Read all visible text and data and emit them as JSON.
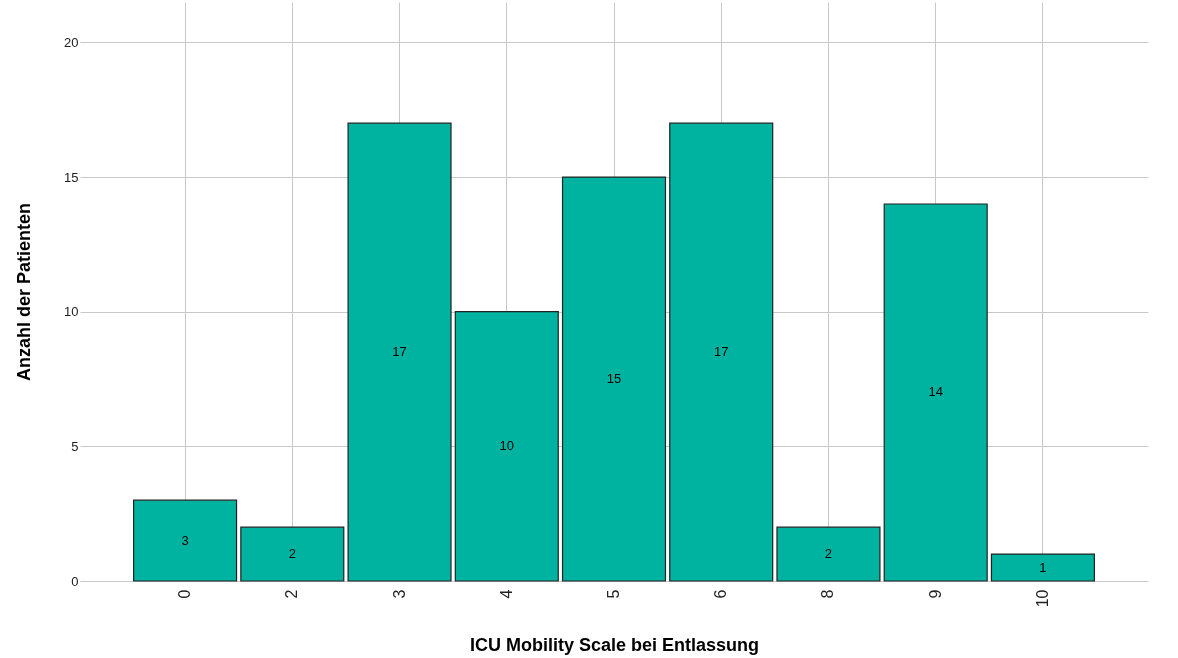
{
  "chart_data": {
    "type": "bar",
    "xlabel": "ICU Mobility Scale bei Entlassung",
    "ylabel": "Anzahl der Patienten",
    "categories": [
      "0",
      "2",
      "3",
      "4",
      "5",
      "6",
      "8",
      "9",
      "10"
    ],
    "values": [
      3,
      2,
      17,
      10,
      15,
      17,
      2,
      14,
      1
    ],
    "color": "#00b2a0",
    "ylim": [
      0,
      21.5
    ],
    "yticks": [
      0,
      5,
      10,
      15,
      20
    ],
    "grid": true,
    "data_labels": true
  }
}
